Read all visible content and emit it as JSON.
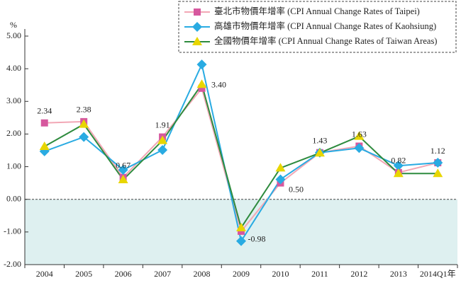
{
  "chart_data": {
    "type": "line",
    "y_label": "%",
    "categories": [
      "2004",
      "2005",
      "2006",
      "2007",
      "2008",
      "2009",
      "2010",
      "2011",
      "2012",
      "2013",
      "2014Q1年"
    ],
    "ylim": [
      -2,
      5
    ],
    "yticks": [
      {
        "value": -2,
        "label": "-2.00"
      },
      {
        "value": -1,
        "label": "-1.00"
      },
      {
        "value": 0,
        "label": "0.00"
      },
      {
        "value": 1,
        "label": "1.00"
      },
      {
        "value": 2,
        "label": "2.00"
      },
      {
        "value": 3,
        "label": "3.00"
      },
      {
        "value": 4,
        "label": "4.00"
      },
      {
        "value": 5,
        "label": "5.00"
      }
    ],
    "negative_shading": "#def0f0",
    "series": [
      {
        "name": "臺北市物價年增率 (CPI Annual Change Rates of Taipei)",
        "color": "#f2a7b5",
        "marker_color": "#d6589e",
        "marker": "square",
        "values": [
          2.34,
          2.38,
          0.67,
          1.91,
          3.4,
          -0.98,
          0.5,
          1.43,
          1.63,
          0.82,
          1.12
        ],
        "value_labels": [
          "2.34",
          "2.38",
          "0.67",
          "1.91",
          "3.40",
          "-0.98",
          "0.50",
          "1.43",
          "1.63",
          "0.82",
          "1.12"
        ]
      },
      {
        "name": "高雄市物價年增率 (CPI Annual Change Rates of Kaohsiung)",
        "color": "#29abe2",
        "marker_color": "#29abe2",
        "marker": "diamond",
        "values": [
          1.47,
          1.91,
          0.9,
          1.51,
          4.13,
          -1.28,
          0.61,
          1.43,
          1.57,
          1.03,
          1.12
        ]
      },
      {
        "name": "全國物價年增率 (CPI Annual Change Rates of Taiwan Areas)",
        "color": "#2e8b3e",
        "marker_color": "#e8d600",
        "marker": "triangle",
        "values": [
          1.62,
          2.3,
          0.6,
          1.8,
          3.52,
          -0.87,
          0.96,
          1.42,
          1.93,
          0.79,
          0.79
        ]
      }
    ]
  }
}
